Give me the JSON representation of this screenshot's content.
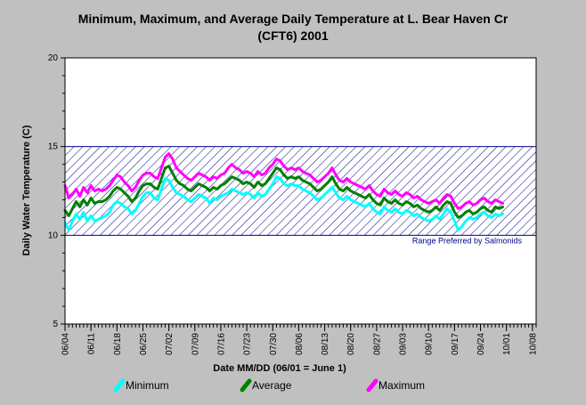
{
  "chart_data": {
    "type": "line",
    "title_line1": "Minimum, Maximum, and Average Daily Temperature at L. Bear Haven Cr",
    "title_line2": "(CFT6) 2001",
    "xlabel": "Date MM/DD (06/01 = June 1)",
    "ylabel": "Daily Water Temperature (C)",
    "ylim": [
      5,
      20
    ],
    "yticks": [
      5,
      10,
      15,
      20
    ],
    "xlim": [
      3,
      130
    ],
    "xtick_labels": [
      "06/04",
      "06/11",
      "06/18",
      "06/25",
      "07/02",
      "07/09",
      "07/16",
      "07/23",
      "07/30",
      "08/06",
      "08/13",
      "08/20",
      "08/27",
      "09/03",
      "09/10",
      "09/17",
      "09/24",
      "10/01",
      "10/08"
    ],
    "xtick_days": [
      3,
      10,
      17,
      24,
      31,
      38,
      45,
      52,
      59,
      66,
      73,
      80,
      87,
      94,
      101,
      108,
      115,
      122,
      129
    ],
    "preferred_range": {
      "low": 10,
      "high": 15,
      "label": "Range Preferred by Salmonids"
    },
    "day_start": 3,
    "series": [
      {
        "name": "Maximum",
        "color": "#ff00ff",
        "values": [
          12.8,
          12.1,
          12.3,
          12.6,
          12.2,
          12.7,
          12.4,
          12.8,
          12.5,
          12.6,
          12.5,
          12.6,
          12.8,
          13.1,
          13.4,
          13.3,
          13.0,
          12.8,
          12.5,
          12.7,
          13.1,
          13.4,
          13.5,
          13.5,
          13.3,
          13.2,
          13.8,
          14.4,
          14.6,
          14.3,
          13.8,
          13.6,
          13.4,
          13.2,
          13.1,
          13.3,
          13.5,
          13.4,
          13.3,
          13.1,
          13.3,
          13.2,
          13.4,
          13.5,
          13.8,
          14.0,
          13.8,
          13.7,
          13.5,
          13.6,
          13.5,
          13.3,
          13.6,
          13.4,
          13.5,
          13.8,
          14.0,
          14.3,
          14.2,
          13.9,
          13.7,
          13.8,
          13.7,
          13.8,
          13.6,
          13.5,
          13.4,
          13.2,
          13.0,
          13.1,
          13.3,
          13.5,
          13.8,
          13.4,
          13.1,
          13.0,
          13.2,
          13.0,
          12.9,
          12.8,
          12.7,
          12.6,
          12.8,
          12.5,
          12.3,
          12.2,
          12.6,
          12.4,
          12.3,
          12.5,
          12.3,
          12.2,
          12.4,
          12.3,
          12.1,
          12.2,
          12.0,
          11.9,
          11.8,
          11.9,
          12.0,
          11.8,
          12.1,
          12.3,
          12.2,
          11.8,
          11.5,
          11.6,
          11.8,
          11.9,
          11.7,
          11.8,
          12.0,
          12.1,
          11.9,
          11.8,
          12.0,
          11.9,
          11.8
        ]
      },
      {
        "name": "Average",
        "color": "#008000",
        "values": [
          11.4,
          11.1,
          11.5,
          11.9,
          11.6,
          12.0,
          11.7,
          12.1,
          11.8,
          11.9,
          11.9,
          12.0,
          12.2,
          12.5,
          12.7,
          12.6,
          12.4,
          12.2,
          11.9,
          12.1,
          12.5,
          12.8,
          12.9,
          12.9,
          12.7,
          12.6,
          13.2,
          13.8,
          13.9,
          13.5,
          13.1,
          12.9,
          12.8,
          12.6,
          12.5,
          12.7,
          12.9,
          12.8,
          12.7,
          12.5,
          12.7,
          12.6,
          12.8,
          12.9,
          13.1,
          13.3,
          13.2,
          13.1,
          12.9,
          13.0,
          12.9,
          12.7,
          13.0,
          12.8,
          12.9,
          13.2,
          13.5,
          13.8,
          13.7,
          13.4,
          13.2,
          13.3,
          13.2,
          13.3,
          13.1,
          13.0,
          12.9,
          12.7,
          12.5,
          12.6,
          12.8,
          13.0,
          13.3,
          12.9,
          12.6,
          12.5,
          12.7,
          12.5,
          12.4,
          12.3,
          12.2,
          12.1,
          12.3,
          12.0,
          11.8,
          11.7,
          12.1,
          11.9,
          11.8,
          12.0,
          11.8,
          11.7,
          11.9,
          11.8,
          11.6,
          11.7,
          11.5,
          11.4,
          11.3,
          11.4,
          11.6,
          11.4,
          11.7,
          11.9,
          11.8,
          11.3,
          11.0,
          11.1,
          11.3,
          11.4,
          11.2,
          11.3,
          11.5,
          11.6,
          11.4,
          11.3,
          11.6,
          11.5,
          11.6
        ]
      },
      {
        "name": "Minimum",
        "color": "#00ffff",
        "values": [
          10.7,
          10.3,
          10.8,
          11.2,
          10.9,
          11.3,
          10.8,
          11.1,
          10.8,
          10.9,
          11.0,
          11.1,
          11.3,
          11.7,
          11.9,
          11.8,
          11.6,
          11.5,
          11.2,
          11.4,
          11.8,
          12.2,
          12.4,
          12.4,
          12.1,
          12.0,
          12.6,
          13.2,
          13.1,
          12.7,
          12.4,
          12.3,
          12.2,
          12.0,
          11.9,
          12.1,
          12.3,
          12.2,
          12.1,
          11.8,
          12.1,
          12.0,
          12.2,
          12.3,
          12.4,
          12.6,
          12.5,
          12.4,
          12.3,
          12.4,
          12.3,
          12.1,
          12.4,
          12.2,
          12.3,
          12.6,
          12.9,
          13.3,
          13.2,
          12.9,
          12.8,
          12.9,
          12.8,
          12.8,
          12.6,
          12.5,
          12.4,
          12.2,
          12.0,
          12.1,
          12.3,
          12.5,
          12.7,
          12.4,
          12.1,
          12.0,
          12.2,
          12.0,
          11.9,
          11.8,
          11.7,
          11.6,
          11.8,
          11.5,
          11.3,
          11.2,
          11.6,
          11.4,
          11.3,
          11.5,
          11.3,
          11.2,
          11.4,
          11.3,
          11.1,
          11.2,
          11.0,
          10.9,
          10.8,
          10.9,
          11.1,
          10.9,
          11.2,
          11.5,
          11.3,
          10.8,
          10.3,
          10.5,
          10.8,
          11.0,
          10.9,
          11.0,
          11.2,
          11.3,
          11.1,
          11.0,
          11.2,
          11.1,
          11.2
        ]
      }
    ],
    "legend": [
      {
        "name": "Minimum",
        "color": "#00ffff"
      },
      {
        "name": "Average",
        "color": "#008000"
      },
      {
        "name": "Maximum",
        "color": "#ff00ff"
      }
    ],
    "legend_placement": "bottom",
    "grid": false
  }
}
